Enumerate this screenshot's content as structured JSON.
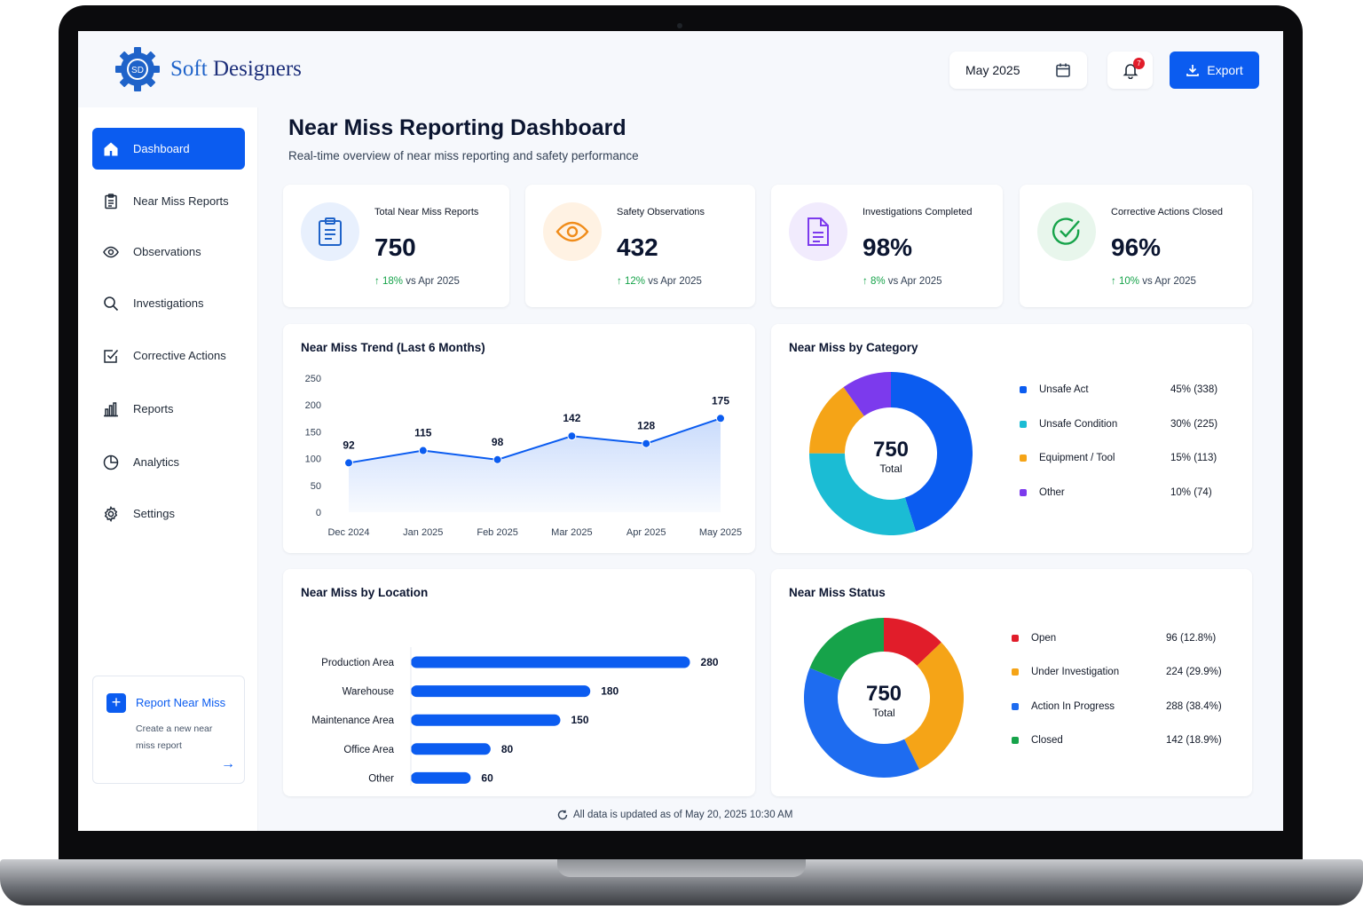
{
  "brand": {
    "name_part1": "Soft",
    "name_part2": "Designers",
    "initials": "SD"
  },
  "header": {
    "date_value": "May 2025",
    "notification_count": "7",
    "export_label": "Export"
  },
  "sidebar": {
    "items": [
      {
        "label": "Dashboard",
        "icon": "home-icon",
        "active": true
      },
      {
        "label": "Near Miss Reports",
        "icon": "clipboard-icon"
      },
      {
        "label": "Observations",
        "icon": "eye-icon"
      },
      {
        "label": "Investigations",
        "icon": "search-icon"
      },
      {
        "label": "Corrective Actions",
        "icon": "checkbox-icon"
      },
      {
        "label": "Reports",
        "icon": "bar-chart-icon"
      },
      {
        "label": "Analytics",
        "icon": "pie-chart-icon"
      },
      {
        "label": "Settings",
        "icon": "gear-icon"
      }
    ],
    "report_card": {
      "title": "Report Near Miss",
      "subtitle": "Create a new near miss report"
    }
  },
  "page": {
    "title": "Near Miss Reporting Dashboard",
    "subtitle": "Real-time overview of near miss reporting and safety performance"
  },
  "kpis": [
    {
      "label": "Total Near Miss Reports",
      "value": "750",
      "delta": "18%",
      "delta_text": "vs Apr 2025",
      "icon": "clipboard-icon",
      "color": "#1f63c9",
      "bg": "#e8f0fd"
    },
    {
      "label": "Safety Observations",
      "value": "432",
      "delta": "12%",
      "delta_text": "vs Apr 2025",
      "icon": "eye-icon",
      "color": "#f08c1a",
      "bg": "#fff2e3"
    },
    {
      "label": "Investigations Completed",
      "value": "98%",
      "delta": "8%",
      "delta_text": "vs Apr 2025",
      "icon": "document-icon",
      "color": "#7c3aed",
      "bg": "#f1ebfd"
    },
    {
      "label": "Corrective Actions Closed",
      "value": "96%",
      "delta": "10%",
      "delta_text": "vs Apr 2025",
      "icon": "check-circle-icon",
      "color": "#16a34a",
      "bg": "#e8f6ec"
    }
  ],
  "trend": {
    "title": "Near Miss Trend (Last 6 Months)"
  },
  "category": {
    "title": "Near Miss by Category",
    "center_value": "750",
    "center_label": "Total"
  },
  "location": {
    "title": "Near Miss by Location"
  },
  "status": {
    "title": "Near Miss Status",
    "center_value": "750",
    "center_label": "Total"
  },
  "footer": {
    "text": "All data is updated as of May 20, 2025 10:30 AM"
  },
  "chart_data": [
    {
      "type": "area",
      "title": "Near Miss Trend (Last 6 Months)",
      "categories": [
        "Dec 2024",
        "Jan 2025",
        "Feb 2025",
        "Mar 2025",
        "Apr 2025",
        "May 2025"
      ],
      "values": [
        92,
        115,
        98,
        142,
        128,
        175
      ],
      "yticks": [
        0,
        50,
        100,
        150,
        200,
        250
      ],
      "ylim": [
        0,
        250
      ],
      "color": "#0b5cf0"
    },
    {
      "type": "pie",
      "title": "Near Miss by Category",
      "categories": [
        "Unsafe Act",
        "Unsafe Condition",
        "Equipment / Tool",
        "Other"
      ],
      "values": [
        338,
        225,
        113,
        74
      ],
      "labels": [
        "45% (338)",
        "30% (225)",
        "15% (113)",
        "10% (74)"
      ],
      "colors": [
        "#0b5cf0",
        "#1bbcd4",
        "#f5a417",
        "#7c3aed"
      ]
    },
    {
      "type": "bar",
      "title": "Near Miss by Location",
      "categories": [
        "Production Area",
        "Warehouse",
        "Maintenance Area",
        "Office Area",
        "Other"
      ],
      "values": [
        280,
        180,
        150,
        80,
        60
      ],
      "xticks": [
        0,
        100,
        200,
        300
      ],
      "xlim": [
        0,
        300
      ],
      "color": "#0b5cf0"
    },
    {
      "type": "pie",
      "title": "Near Miss Status",
      "categories": [
        "Open",
        "Under Investigation",
        "Action In Progress",
        "Closed"
      ],
      "values": [
        96,
        224,
        288,
        142
      ],
      "labels": [
        "96 (12.8%)",
        "224 (29.9%)",
        "288 (38.4%)",
        "142 (18.9%)"
      ],
      "colors": [
        "#e11d2a",
        "#f5a417",
        "#1e6cf0",
        "#16a34a"
      ]
    }
  ]
}
